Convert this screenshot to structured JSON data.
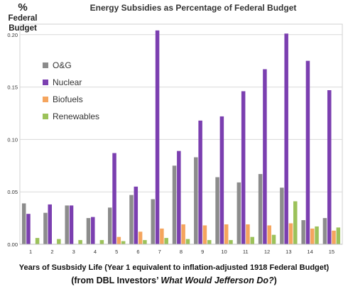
{
  "chart_data": {
    "type": "bar",
    "title": "Energy Subsidies as Percentage of Federal Budget",
    "ylabel_symbol": "%",
    "ylabel_line1": "Federal",
    "ylabel_line2": "Budget",
    "xlabel": "Years of Susbsidy Life (Year 1 equivalent to inflation-adjusted 1918 Federal Budget)",
    "source_prefix": "(from DBL Investors’ ",
    "source_title": "What Would Jefferson Do?",
    "source_suffix": ")",
    "categories": [
      "1",
      "2",
      "3",
      "4",
      "5",
      "6",
      "7",
      "8",
      "9",
      "10",
      "11",
      "12",
      "13",
      "14",
      "15"
    ],
    "ylim": [
      0,
      0.21
    ],
    "yticks": [
      "0.00",
      "0.05",
      "0.10",
      "0.15",
      "0.20"
    ],
    "ytick_values": [
      0,
      0.05,
      0.1,
      0.15,
      0.2
    ],
    "grid": true,
    "legend_position": "top-left",
    "series": [
      {
        "name": "O&G",
        "color": "#8c8c8c",
        "values": [
          0.039,
          0.03,
          0.037,
          0.025,
          0.035,
          0.047,
          0.043,
          0.075,
          0.083,
          0.064,
          0.059,
          0.067,
          0.054,
          0.023,
          0.025
        ]
      },
      {
        "name": "Nuclear",
        "color": "#7b3fb0",
        "values": [
          0.029,
          0.038,
          0.037,
          0.026,
          0.087,
          0.055,
          0.204,
          0.089,
          0.118,
          0.122,
          0.146,
          0.167,
          0.201,
          0.175,
          0.147
        ]
      },
      {
        "name": "Biofuels",
        "color": "#f5a55e",
        "values": [
          0.0,
          0.0,
          0.0,
          0.0,
          0.007,
          0.012,
          0.015,
          0.019,
          0.018,
          0.019,
          0.019,
          0.018,
          0.02,
          0.015,
          0.013
        ]
      },
      {
        "name": "Renewables",
        "color": "#9cc25a",
        "values": [
          0.006,
          0.005,
          0.004,
          0.004,
          0.003,
          0.004,
          0.006,
          0.005,
          0.004,
          0.004,
          0.007,
          0.009,
          0.041,
          0.017,
          0.016
        ]
      }
    ]
  }
}
